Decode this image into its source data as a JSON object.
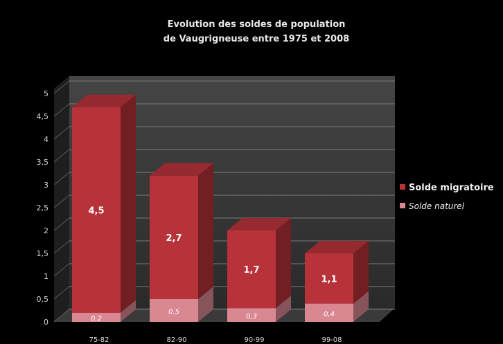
{
  "chart_data": {
    "type": "bar",
    "stacked": true,
    "title": "Evolution des soldes de population",
    "subtitle": "de Vaugrigneuse entre 1975 et 2008",
    "categories": [
      "75-82",
      "82-90",
      "90-99",
      "99-08"
    ],
    "series": [
      {
        "name": "Solde migratoire",
        "values": [
          4.5,
          2.7,
          1.7,
          1.1
        ],
        "labels": [
          "4,5",
          "2,7",
          "1,7",
          "1,1"
        ],
        "color": "#b8323a"
      },
      {
        "name": "Solde naturel",
        "values": [
          0.2,
          0.5,
          0.3,
          0.4
        ],
        "labels": [
          "0,2",
          "0,5",
          "0,3",
          "0,4"
        ],
        "color": "#d98892"
      }
    ],
    "yticks": [
      "0",
      "0,5",
      "1",
      "1,5",
      "2",
      "2,5",
      "3",
      "3,5",
      "4",
      "4,5",
      "5"
    ],
    "ylim": [
      0,
      5
    ],
    "grid": true,
    "legend_position": "right"
  }
}
